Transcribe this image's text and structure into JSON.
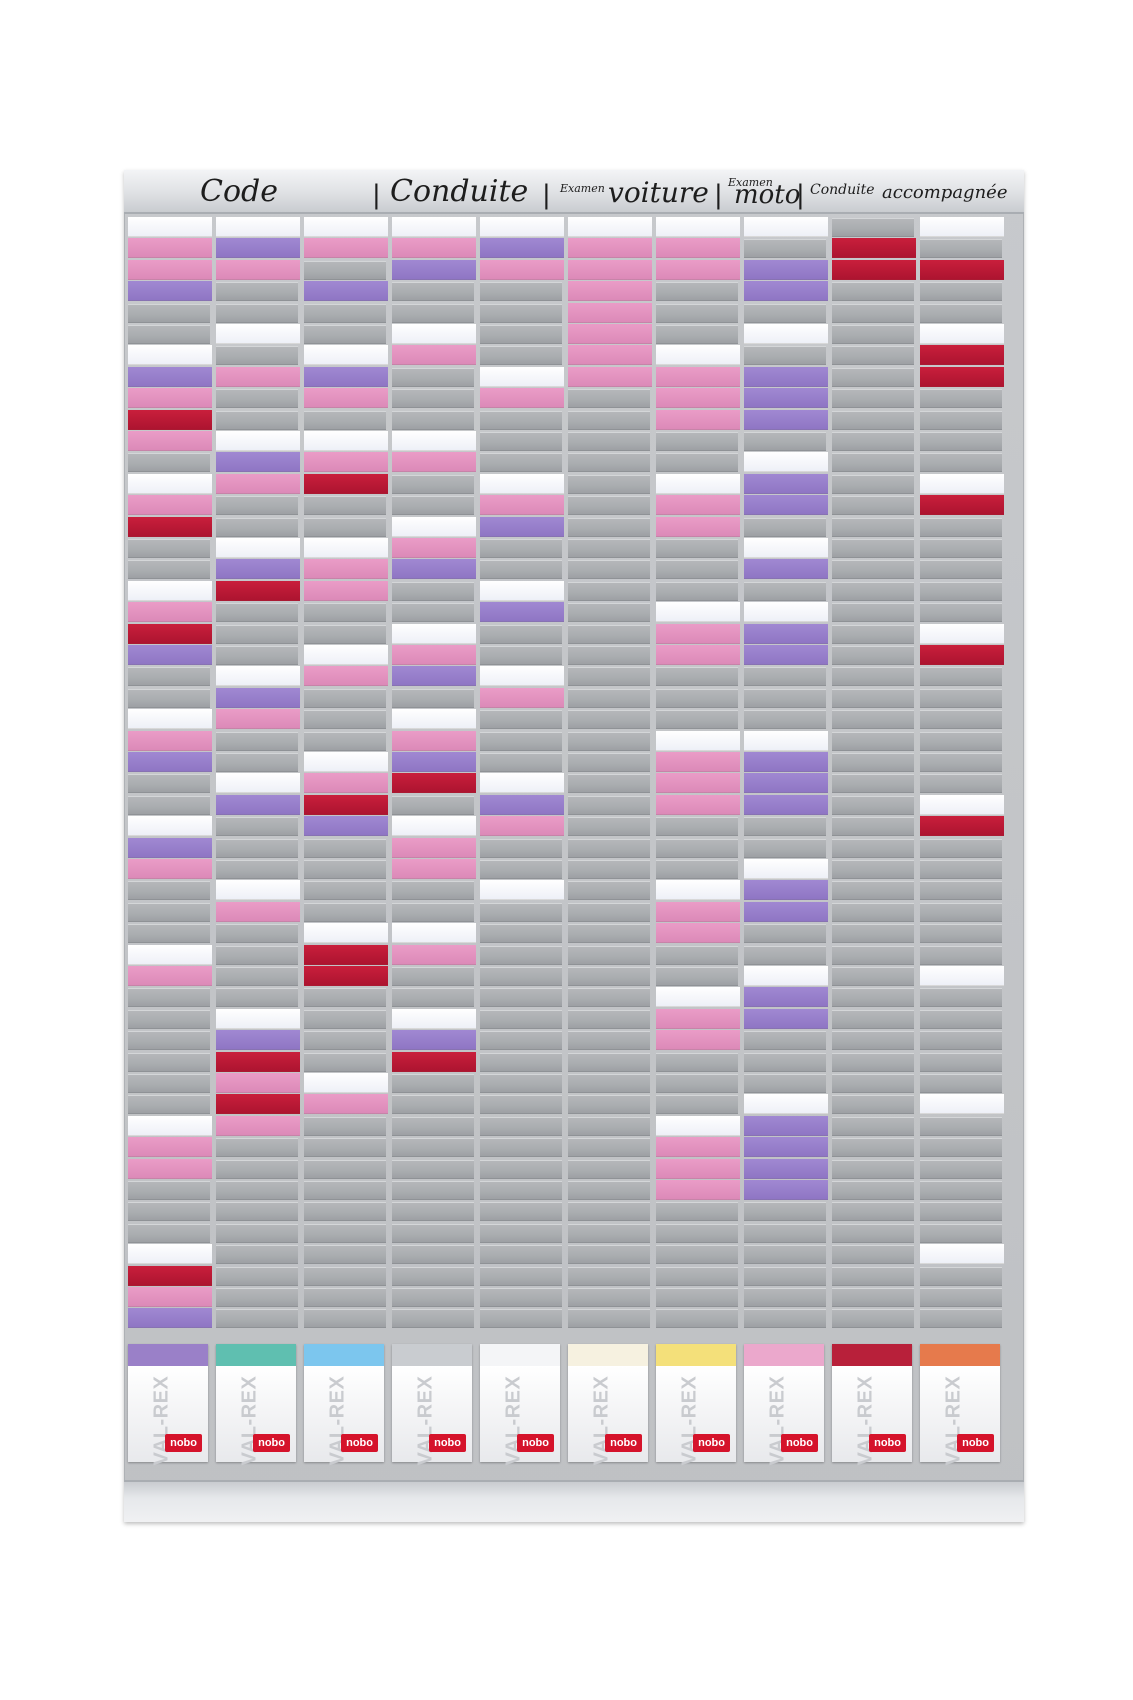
{
  "header": {
    "code": "Code",
    "conduite": "Conduite",
    "examen1": "Examen",
    "voiture": "voiture",
    "examen2": "Examen",
    "moto": "moto",
    "conduite_small": "Conduite",
    "accompagnee": "accompagnée",
    "separator": "|"
  },
  "box_brand": "VAL-REX",
  "box_logo": "nobo",
  "box_lid_colors": [
    "#9a80c8",
    "#5fbfb0",
    "#7cc6ee",
    "#c9ccd0",
    "#f4f5f7",
    "#f6f1e0",
    "#f4e07a",
    "#eba8cc",
    "#b8203a",
    "#e67a4c"
  ],
  "card_colors": {
    "white": "#f6f7fb",
    "pink": "#e295c0",
    "purple": "#9980cc",
    "red": "#bb1a36"
  },
  "columns": [
    {
      "cards": [
        [
          0,
          "white"
        ],
        [
          1,
          "pink"
        ],
        [
          2,
          "pink"
        ],
        [
          3,
          "purple"
        ],
        [
          6,
          "white"
        ],
        [
          7,
          "purple"
        ],
        [
          8,
          "pink"
        ],
        [
          9,
          "red"
        ],
        [
          10,
          "pink"
        ],
        [
          12,
          "white"
        ],
        [
          13,
          "pink"
        ],
        [
          14,
          "red"
        ],
        [
          17,
          "white"
        ],
        [
          18,
          "pink"
        ],
        [
          19,
          "red"
        ],
        [
          20,
          "purple"
        ],
        [
          23,
          "white"
        ],
        [
          24,
          "pink"
        ],
        [
          25,
          "purple"
        ],
        [
          28,
          "white"
        ],
        [
          29,
          "purple"
        ],
        [
          30,
          "pink"
        ],
        [
          34,
          "white"
        ],
        [
          35,
          "pink"
        ],
        [
          42,
          "white"
        ],
        [
          43,
          "pink"
        ],
        [
          44,
          "pink"
        ],
        [
          48,
          "white"
        ],
        [
          49,
          "red"
        ],
        [
          50,
          "pink"
        ],
        [
          51,
          "purple"
        ]
      ]
    },
    {
      "cards": [
        [
          0,
          "white"
        ],
        [
          1,
          "purple"
        ],
        [
          2,
          "pink"
        ],
        [
          5,
          "white"
        ],
        [
          7,
          "pink"
        ],
        [
          10,
          "white"
        ],
        [
          11,
          "purple"
        ],
        [
          12,
          "pink"
        ],
        [
          15,
          "white"
        ],
        [
          16,
          "purple"
        ],
        [
          17,
          "red"
        ],
        [
          21,
          "white"
        ],
        [
          22,
          "purple"
        ],
        [
          23,
          "pink"
        ],
        [
          26,
          "white"
        ],
        [
          27,
          "purple"
        ],
        [
          31,
          "white"
        ],
        [
          32,
          "pink"
        ],
        [
          37,
          "white"
        ],
        [
          38,
          "purple"
        ],
        [
          39,
          "red"
        ],
        [
          40,
          "pink"
        ],
        [
          41,
          "red"
        ],
        [
          42,
          "pink"
        ]
      ]
    },
    {
      "cards": [
        [
          0,
          "white"
        ],
        [
          1,
          "pink"
        ],
        [
          3,
          "purple"
        ],
        [
          6,
          "white"
        ],
        [
          7,
          "purple"
        ],
        [
          8,
          "pink"
        ],
        [
          10,
          "white"
        ],
        [
          11,
          "pink"
        ],
        [
          12,
          "red"
        ],
        [
          15,
          "white"
        ],
        [
          16,
          "pink"
        ],
        [
          17,
          "pink"
        ],
        [
          20,
          "white"
        ],
        [
          21,
          "pink"
        ],
        [
          25,
          "white"
        ],
        [
          26,
          "pink"
        ],
        [
          27,
          "red"
        ],
        [
          28,
          "purple"
        ],
        [
          33,
          "white"
        ],
        [
          34,
          "red"
        ],
        [
          35,
          "red"
        ],
        [
          40,
          "white"
        ],
        [
          41,
          "pink"
        ]
      ]
    },
    {
      "cards": [
        [
          0,
          "white"
        ],
        [
          1,
          "pink"
        ],
        [
          2,
          "purple"
        ],
        [
          5,
          "white"
        ],
        [
          6,
          "pink"
        ],
        [
          10,
          "white"
        ],
        [
          11,
          "pink"
        ],
        [
          14,
          "white"
        ],
        [
          15,
          "pink"
        ],
        [
          16,
          "purple"
        ],
        [
          19,
          "white"
        ],
        [
          20,
          "pink"
        ],
        [
          21,
          "purple"
        ],
        [
          23,
          "white"
        ],
        [
          24,
          "pink"
        ],
        [
          25,
          "purple"
        ],
        [
          26,
          "red"
        ],
        [
          28,
          "white"
        ],
        [
          29,
          "pink"
        ],
        [
          30,
          "pink"
        ],
        [
          33,
          "white"
        ],
        [
          34,
          "pink"
        ],
        [
          37,
          "white"
        ],
        [
          38,
          "purple"
        ],
        [
          39,
          "red"
        ]
      ]
    },
    {
      "cards": [
        [
          0,
          "white"
        ],
        [
          1,
          "purple"
        ],
        [
          2,
          "pink"
        ],
        [
          7,
          "white"
        ],
        [
          8,
          "pink"
        ],
        [
          12,
          "white"
        ],
        [
          13,
          "pink"
        ],
        [
          14,
          "purple"
        ],
        [
          17,
          "white"
        ],
        [
          18,
          "purple"
        ],
        [
          21,
          "white"
        ],
        [
          22,
          "pink"
        ],
        [
          26,
          "white"
        ],
        [
          27,
          "purple"
        ],
        [
          28,
          "pink"
        ],
        [
          31,
          "white"
        ]
      ]
    },
    {
      "cards": [
        [
          0,
          "white"
        ],
        [
          1,
          "pink"
        ],
        [
          2,
          "pink"
        ],
        [
          3,
          "pink"
        ],
        [
          4,
          "pink"
        ],
        [
          5,
          "pink"
        ],
        [
          6,
          "pink"
        ],
        [
          7,
          "pink"
        ]
      ]
    },
    {
      "cards": [
        [
          0,
          "white"
        ],
        [
          1,
          "pink"
        ],
        [
          2,
          "pink"
        ],
        [
          6,
          "white"
        ],
        [
          7,
          "pink"
        ],
        [
          8,
          "pink"
        ],
        [
          9,
          "pink"
        ],
        [
          12,
          "white"
        ],
        [
          13,
          "pink"
        ],
        [
          14,
          "pink"
        ],
        [
          18,
          "white"
        ],
        [
          19,
          "pink"
        ],
        [
          20,
          "pink"
        ],
        [
          24,
          "white"
        ],
        [
          25,
          "pink"
        ],
        [
          26,
          "pink"
        ],
        [
          27,
          "pink"
        ],
        [
          31,
          "white"
        ],
        [
          32,
          "pink"
        ],
        [
          33,
          "pink"
        ],
        [
          36,
          "white"
        ],
        [
          37,
          "pink"
        ],
        [
          38,
          "pink"
        ],
        [
          42,
          "white"
        ],
        [
          43,
          "pink"
        ],
        [
          44,
          "pink"
        ],
        [
          45,
          "pink"
        ]
      ]
    },
    {
      "cards": [
        [
          0,
          "white"
        ],
        [
          2,
          "purple"
        ],
        [
          3,
          "purple"
        ],
        [
          5,
          "white"
        ],
        [
          7,
          "purple"
        ],
        [
          8,
          "purple"
        ],
        [
          9,
          "purple"
        ],
        [
          11,
          "white"
        ],
        [
          12,
          "purple"
        ],
        [
          13,
          "purple"
        ],
        [
          15,
          "white"
        ],
        [
          16,
          "purple"
        ],
        [
          18,
          "white"
        ],
        [
          19,
          "purple"
        ],
        [
          20,
          "purple"
        ],
        [
          24,
          "white"
        ],
        [
          25,
          "purple"
        ],
        [
          26,
          "purple"
        ],
        [
          27,
          "purple"
        ],
        [
          30,
          "white"
        ],
        [
          31,
          "purple"
        ],
        [
          32,
          "purple"
        ],
        [
          35,
          "white"
        ],
        [
          36,
          "purple"
        ],
        [
          37,
          "purple"
        ],
        [
          41,
          "white"
        ],
        [
          42,
          "purple"
        ],
        [
          43,
          "purple"
        ],
        [
          44,
          "purple"
        ],
        [
          45,
          "purple"
        ]
      ]
    },
    {
      "cards": [
        [
          1,
          "red"
        ],
        [
          2,
          "red"
        ]
      ]
    },
    {
      "cards": [
        [
          0,
          "white"
        ],
        [
          2,
          "red"
        ],
        [
          5,
          "white"
        ],
        [
          6,
          "red"
        ],
        [
          7,
          "red"
        ],
        [
          12,
          "white"
        ],
        [
          13,
          "red"
        ],
        [
          19,
          "white"
        ],
        [
          20,
          "red"
        ],
        [
          27,
          "white"
        ],
        [
          28,
          "red"
        ],
        [
          35,
          "white"
        ],
        [
          41,
          "white"
        ],
        [
          48,
          "white"
        ]
      ]
    }
  ]
}
